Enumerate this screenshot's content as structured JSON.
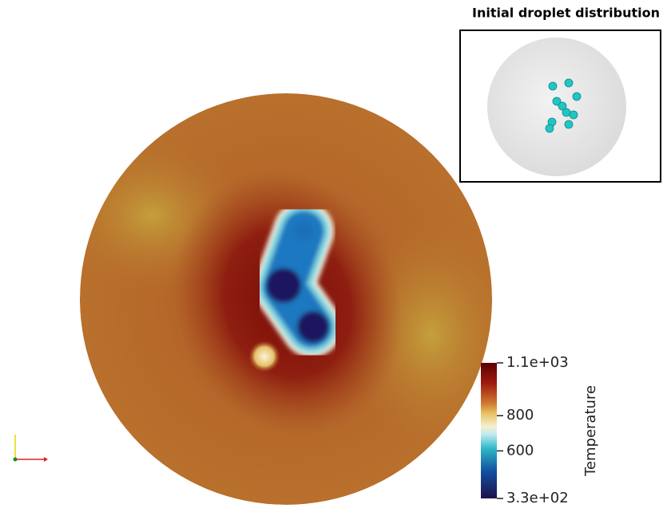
{
  "inset": {
    "title": "Initial droplet distribution"
  },
  "colorbar": {
    "title": "Temperature",
    "ticks": [
      {
        "value": 1100,
        "label": "1.1e+03"
      },
      800,
      600,
      {
        "value": 330,
        "label": "3.3e+02"
      }
    ]
  }
}
